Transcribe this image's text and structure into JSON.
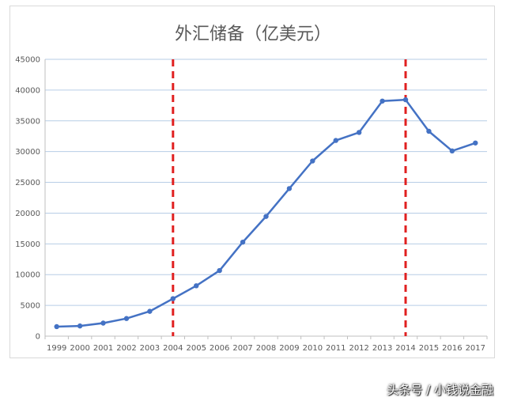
{
  "chart_data": {
    "type": "line",
    "title": "外汇储备（亿美元）",
    "xlabel": "",
    "ylabel": "",
    "categories": [
      "1999",
      "2000",
      "2001",
      "2002",
      "2003",
      "2004",
      "2005",
      "2006",
      "2007",
      "2008",
      "2009",
      "2010",
      "2011",
      "2012",
      "2013",
      "2014",
      "2015",
      "2016",
      "2017"
    ],
    "series": [
      {
        "values": [
          1547,
          1656,
          2122,
          2864,
          4033,
          6099,
          8189,
          10663,
          15282,
          19460,
          23992,
          28473,
          31811,
          33116,
          38213,
          38430,
          33304,
          30105,
          31399
        ]
      }
    ],
    "ylim": [
      0,
      45000
    ],
    "yticks": [
      0,
      5000,
      10000,
      15000,
      20000,
      25000,
      30000,
      35000,
      40000,
      45000
    ],
    "grid": "horizontal",
    "legend": "none",
    "markers": [
      {
        "category": "2004",
        "style": "dashed",
        "color": "#e02020"
      },
      {
        "category": "2014",
        "style": "dashed",
        "color": "#e02020"
      }
    ],
    "colors": {
      "line": "#4472c4",
      "grid": "#b7cde6",
      "axis": "#bfbfbf",
      "marker_line": "#e02020"
    }
  },
  "watermark": "头条号 / 小钱说金融"
}
